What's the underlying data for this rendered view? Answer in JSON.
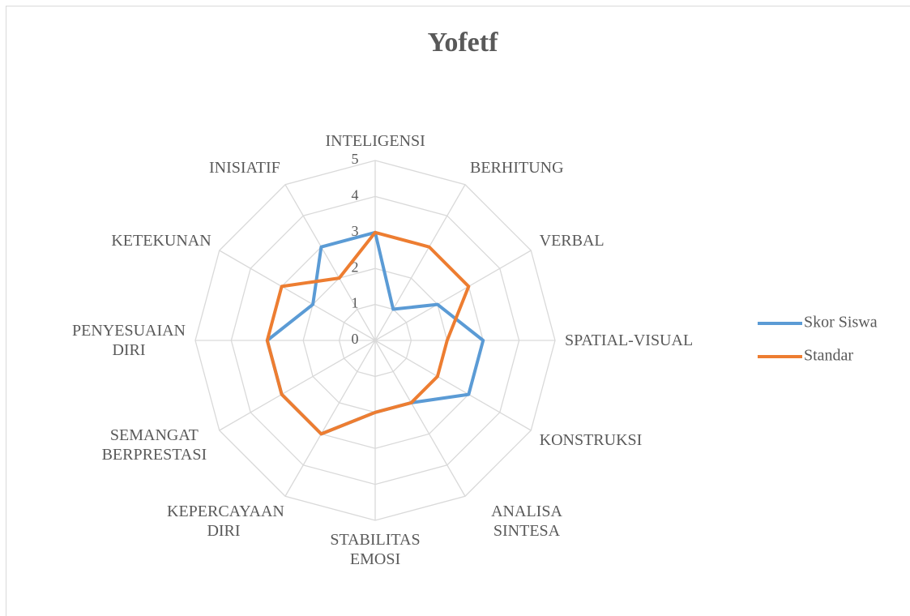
{
  "chart_data": {
    "type": "radar",
    "title": "Yofetf",
    "categories": [
      "INTELIGENSI",
      "BERHITUNG",
      "VERBAL",
      "SPATIAL-VISUAL",
      "KONSTRUKSI",
      "ANALISA SINTESA",
      "STABILITAS EMOSI",
      "KEPERCAYAAN DIRI",
      "SEMANGAT BERPRESTASI",
      "PENYESUAIAN DIRI",
      "KETEKUNAN",
      "INISIATIF"
    ],
    "series": [
      {
        "name": "Skor Siswa",
        "color": "#5b9bd5",
        "values": [
          3,
          1,
          2,
          3,
          3,
          2,
          2,
          3,
          3,
          3,
          2,
          3
        ]
      },
      {
        "name": "Standar",
        "color": "#ed7d31",
        "values": [
          3,
          3,
          3,
          2,
          2,
          2,
          2,
          3,
          3,
          3,
          3,
          2
        ]
      }
    ],
    "rlim": [
      0,
      5
    ],
    "rticks": [
      0,
      1,
      2,
      3,
      4,
      5
    ],
    "grid": true,
    "legend": "right"
  }
}
